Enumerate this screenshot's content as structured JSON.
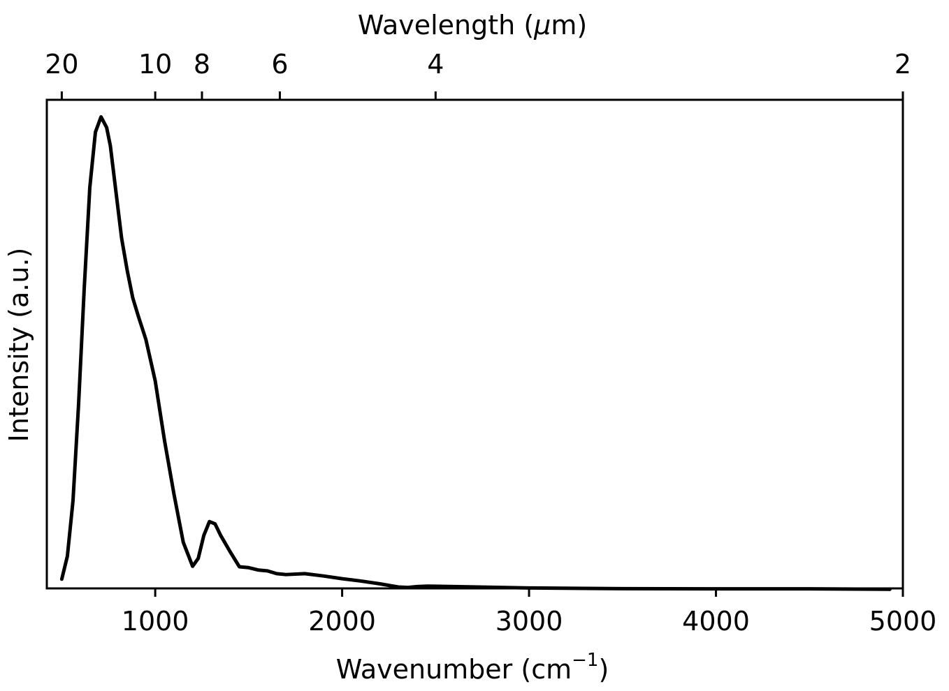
{
  "chart_data": {
    "type": "line",
    "title": "",
    "xlabel_main": "Wavenumber (cm",
    "xlabel_sup": "−1",
    "xlabel_close": ")",
    "x2label_pre": "Wavelength (",
    "x2label_mu": "μ",
    "x2label_post": "m)",
    "ylabel": "Intensity (a.u.)",
    "xlim": [
      420,
      5000
    ],
    "ylim": [
      0,
      1.06
    ],
    "x_ticks": [
      {
        "value": 1000,
        "label": "1000"
      },
      {
        "value": 2000,
        "label": "2000"
      },
      {
        "value": 3000,
        "label": "3000"
      },
      {
        "value": 4000,
        "label": "4000"
      },
      {
        "value": 5000,
        "label": "5000"
      }
    ],
    "x2_ticks": [
      {
        "wavelength_um": 20,
        "label": "20"
      },
      {
        "wavelength_um": 10,
        "label": "10"
      },
      {
        "wavelength_um": 8,
        "label": "8"
      },
      {
        "wavelength_um": 6,
        "label": "6"
      },
      {
        "wavelength_um": 4,
        "label": "4"
      },
      {
        "wavelength_um": 2,
        "label": "2"
      }
    ],
    "series": [
      {
        "color": "#000000",
        "x": [
          500,
          530,
          560,
          590,
          620,
          650,
          680,
          710,
          740,
          760,
          790,
          820,
          850,
          880,
          910,
          950,
          1000,
          1050,
          1100,
          1150,
          1200,
          1230,
          1260,
          1290,
          1320,
          1350,
          1400,
          1450,
          1500,
          1550,
          1600,
          1650,
          1700,
          1800,
          1900,
          2000,
          2100,
          2200,
          2300,
          2350,
          2400,
          2460,
          2600,
          2800,
          3000,
          3300,
          3500,
          4000,
          4500,
          4930
        ],
        "y": [
          0.02,
          0.07,
          0.19,
          0.4,
          0.65,
          0.87,
          0.99,
          1.023,
          1.0,
          0.96,
          0.86,
          0.76,
          0.69,
          0.63,
          0.59,
          0.54,
          0.45,
          0.32,
          0.205,
          0.1,
          0.048,
          0.065,
          0.115,
          0.145,
          0.14,
          0.115,
          0.08,
          0.047,
          0.045,
          0.04,
          0.038,
          0.032,
          0.03,
          0.032,
          0.027,
          0.021,
          0.016,
          0.01,
          0.003,
          0.002,
          0.004,
          0.005,
          0.004,
          0.0025,
          0.001,
          0.0,
          -0.0005,
          -0.001,
          -0.001,
          -0.002
        ]
      }
    ],
    "grid": false,
    "legend": "none"
  },
  "colors": {
    "line": "#000000",
    "axes": "#000000",
    "background": "#ffffff"
  }
}
